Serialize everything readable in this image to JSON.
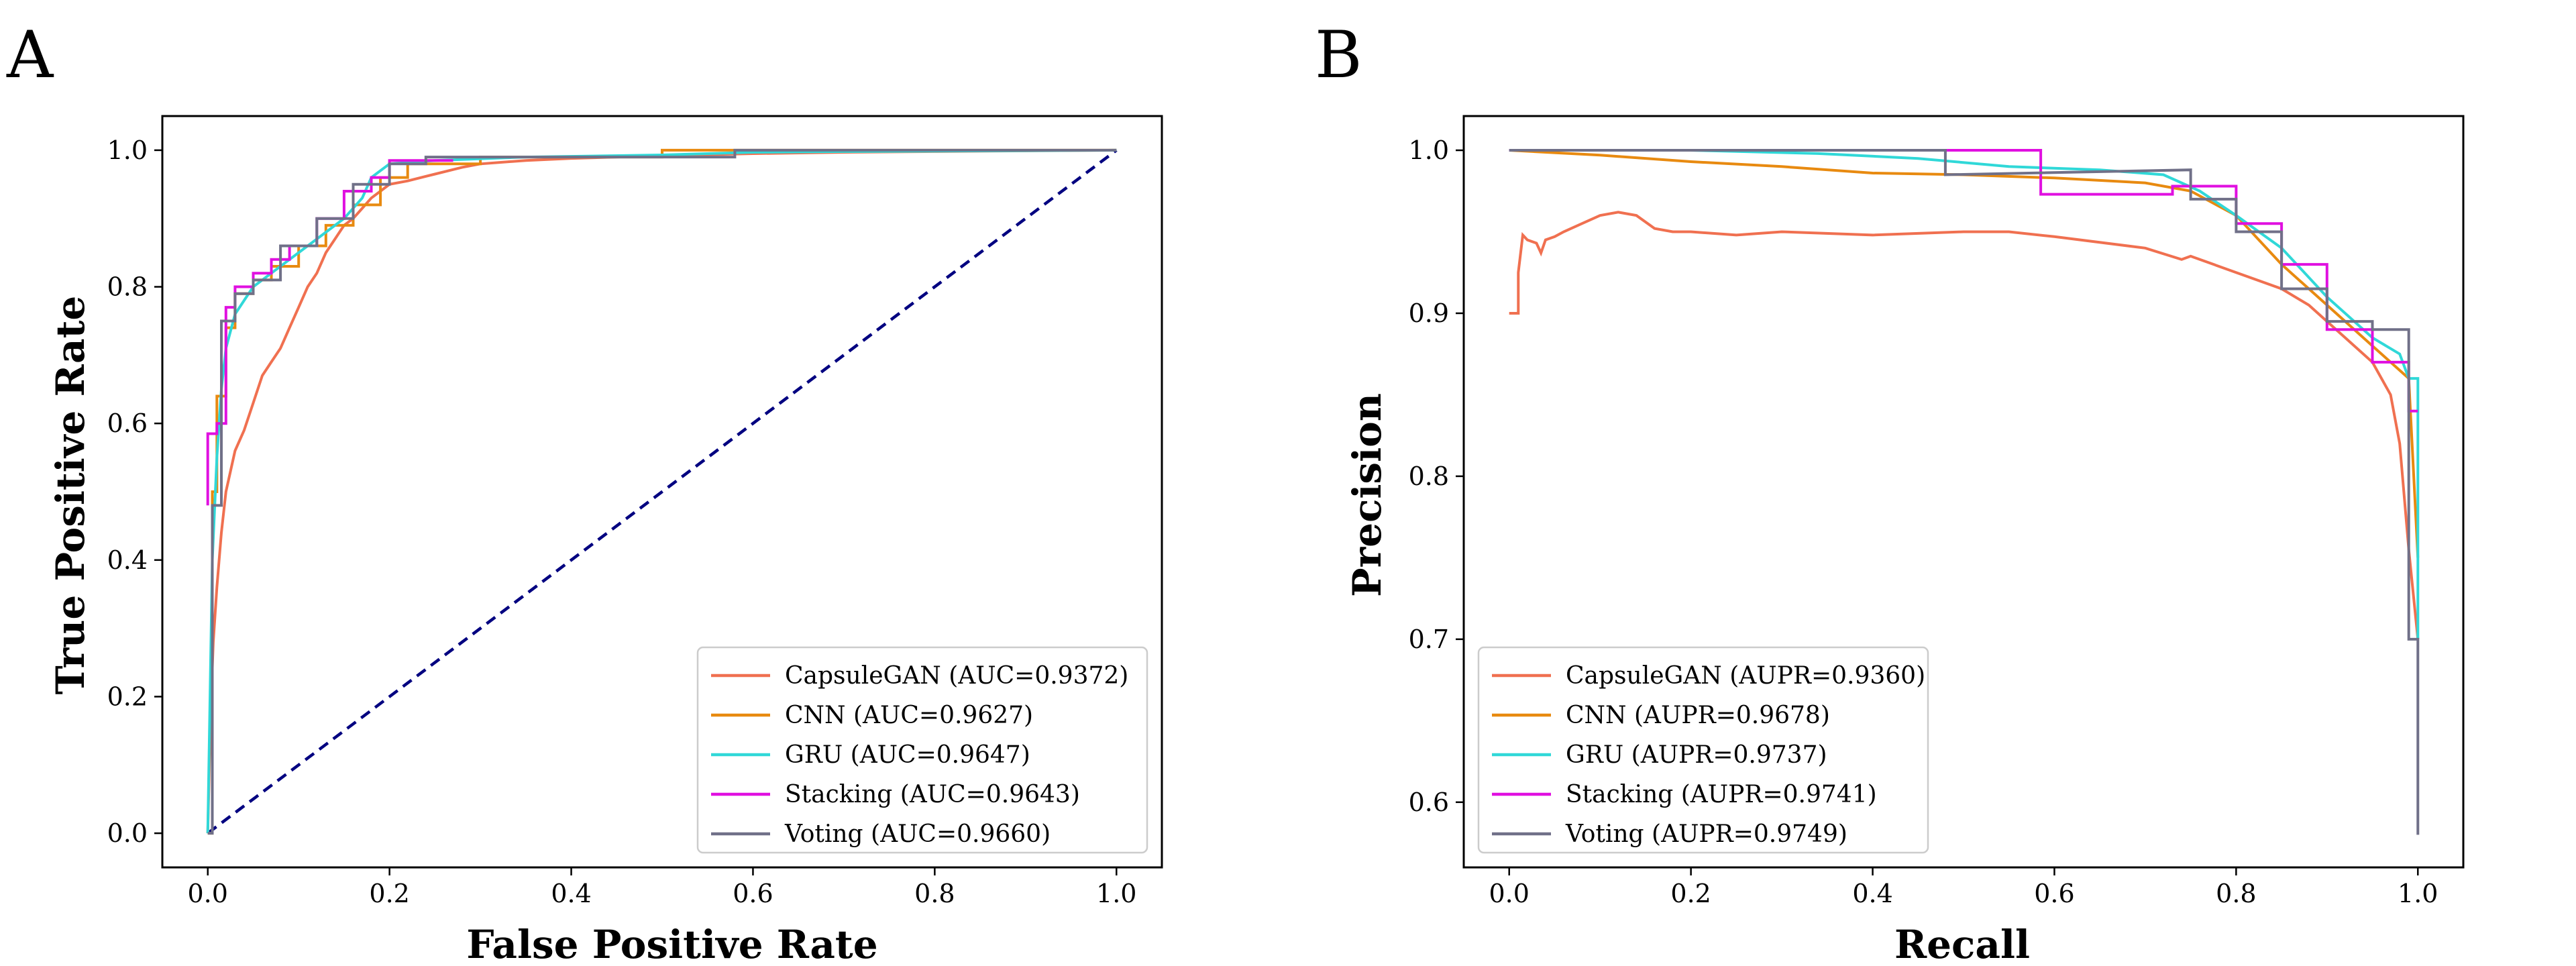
{
  "chart_data": [
    {
      "panel": "A",
      "type": "line",
      "xlabel": "False Positive Rate",
      "ylabel": "True Positive Rate",
      "xlim": [
        -0.05,
        1.05
      ],
      "ylim": [
        -0.05,
        1.05
      ],
      "xticks": [
        "0.0",
        "0.2",
        "0.4",
        "0.6",
        "0.8",
        "1.0"
      ],
      "yticks": [
        "0.0",
        "0.2",
        "0.4",
        "0.6",
        "0.8",
        "1.0"
      ],
      "grid": false,
      "legend_position": "lower-right",
      "reference_line": {
        "x": [
          0,
          1
        ],
        "y": [
          0,
          1
        ],
        "color": "#000080",
        "style": "dashed"
      },
      "series": [
        {
          "name": "CapsuleGAN (AUC=0.9372)",
          "color": "#f07050",
          "step": false,
          "x": [
            0,
            0.003,
            0.006,
            0.01,
            0.015,
            0.02,
            0.03,
            0.04,
            0.05,
            0.06,
            0.07,
            0.08,
            0.09,
            0.1,
            0.11,
            0.12,
            0.13,
            0.14,
            0.15,
            0.16,
            0.17,
            0.18,
            0.19,
            0.2,
            0.22,
            0.25,
            0.28,
            0.3,
            0.35,
            0.4,
            0.45,
            0.5,
            0.6,
            0.7,
            0.8,
            0.9,
            1.0
          ],
          "y": [
            0,
            0.17,
            0.28,
            0.36,
            0.44,
            0.5,
            0.56,
            0.59,
            0.63,
            0.67,
            0.69,
            0.71,
            0.74,
            0.77,
            0.8,
            0.82,
            0.85,
            0.87,
            0.89,
            0.9,
            0.915,
            0.93,
            0.94,
            0.95,
            0.955,
            0.965,
            0.975,
            0.98,
            0.985,
            0.988,
            0.99,
            0.992,
            0.995,
            0.997,
            0.998,
            0.999,
            1.0
          ]
        },
        {
          "name": "CNN (AUC=0.9627)",
          "color": "#e88a10",
          "step": true,
          "x": [
            0,
            0.005,
            0.005,
            0.01,
            0.01,
            0.02,
            0.02,
            0.03,
            0.03,
            0.05,
            0.05,
            0.07,
            0.07,
            0.1,
            0.1,
            0.13,
            0.13,
            0.16,
            0.16,
            0.19,
            0.19,
            0.22,
            0.22,
            0.3,
            0.3,
            0.5,
            0.5,
            1.0
          ],
          "y": [
            0,
            0,
            0.5,
            0.5,
            0.64,
            0.64,
            0.74,
            0.74,
            0.79,
            0.79,
            0.81,
            0.81,
            0.83,
            0.83,
            0.86,
            0.86,
            0.89,
            0.89,
            0.92,
            0.92,
            0.96,
            0.96,
            0.98,
            0.98,
            0.99,
            0.99,
            1.0,
            1.0
          ]
        },
        {
          "name": "GRU (AUC=0.9647)",
          "color": "#30d8d8",
          "step": false,
          "x": [
            0,
            0.005,
            0.01,
            0.015,
            0.02,
            0.03,
            0.04,
            0.05,
            0.07,
            0.09,
            0.11,
            0.13,
            0.15,
            0.17,
            0.18,
            0.2,
            0.25,
            0.35,
            0.5,
            0.6,
            0.7,
            1.0
          ],
          "y": [
            0,
            0.4,
            0.55,
            0.65,
            0.71,
            0.76,
            0.78,
            0.8,
            0.82,
            0.84,
            0.86,
            0.88,
            0.9,
            0.93,
            0.96,
            0.98,
            0.985,
            0.99,
            0.993,
            0.997,
            0.998,
            1.0
          ]
        },
        {
          "name": "Stacking (AUC=0.9643)",
          "color": "#e010e0",
          "step": true,
          "x": [
            0,
            0,
            0.01,
            0.01,
            0.02,
            0.02,
            0.03,
            0.03,
            0.05,
            0.05,
            0.07,
            0.07,
            0.09,
            0.09,
            0.12,
            0.12,
            0.15,
            0.15,
            0.18,
            0.18,
            0.2,
            0.2,
            0.27
          ],
          "y": [
            0.48,
            0.585,
            0.585,
            0.6,
            0.6,
            0.77,
            0.77,
            0.8,
            0.8,
            0.82,
            0.82,
            0.84,
            0.84,
            0.86,
            0.86,
            0.9,
            0.9,
            0.94,
            0.94,
            0.96,
            0.96,
            0.985,
            0.985
          ]
        },
        {
          "name": "Voting (AUC=0.9660)",
          "color": "#707088",
          "step": true,
          "x": [
            0,
            0.005,
            0.005,
            0.015,
            0.015,
            0.03,
            0.03,
            0.05,
            0.05,
            0.08,
            0.08,
            0.12,
            0.12,
            0.16,
            0.16,
            0.2,
            0.2,
            0.24,
            0.24,
            0.58,
            0.58,
            1.0
          ],
          "y": [
            0,
            0,
            0.48,
            0.48,
            0.75,
            0.75,
            0.79,
            0.79,
            0.81,
            0.81,
            0.86,
            0.86,
            0.9,
            0.9,
            0.95,
            0.95,
            0.98,
            0.98,
            0.99,
            0.99,
            1.0,
            1.0
          ]
        }
      ]
    },
    {
      "panel": "B",
      "type": "line",
      "xlabel": "Recall",
      "ylabel": "Precision",
      "xlim": [
        -0.05,
        1.05
      ],
      "ylim": [
        0.56,
        1.021
      ],
      "xticks": [
        "0.0",
        "0.2",
        "0.4",
        "0.6",
        "0.8",
        "1.0"
      ],
      "yticks": [
        "0.6",
        "0.7",
        "0.8",
        "0.9",
        "1.0"
      ],
      "grid": false,
      "legend_position": "lower-left",
      "series": [
        {
          "name": "CapsuleGAN (AUPR=0.9360)",
          "color": "#f07050",
          "step": false,
          "x": [
            0,
            0.01,
            0.01,
            0.015,
            0.02,
            0.03,
            0.035,
            0.04,
            0.05,
            0.06,
            0.08,
            0.1,
            0.12,
            0.14,
            0.16,
            0.18,
            0.2,
            0.25,
            0.3,
            0.4,
            0.5,
            0.55,
            0.6,
            0.7,
            0.74,
            0.75,
            0.8,
            0.85,
            0.88,
            0.9,
            0.92,
            0.95,
            0.97,
            0.98,
            0.99,
            1.0
          ],
          "y": [
            0.9,
            0.9,
            0.925,
            0.948,
            0.945,
            0.943,
            0.937,
            0.945,
            0.947,
            0.95,
            0.955,
            0.96,
            0.962,
            0.96,
            0.952,
            0.95,
            0.95,
            0.948,
            0.95,
            0.948,
            0.95,
            0.95,
            0.947,
            0.94,
            0.933,
            0.935,
            0.925,
            0.915,
            0.905,
            0.895,
            0.885,
            0.87,
            0.85,
            0.82,
            0.755,
            0.7
          ]
        },
        {
          "name": "CNN (AUPR=0.9678)",
          "color": "#e88a10",
          "step": false,
          "x": [
            0,
            0.1,
            0.2,
            0.3,
            0.4,
            0.5,
            0.6,
            0.7,
            0.75,
            0.8,
            0.85,
            0.9,
            0.95,
            0.97,
            0.99,
            1.0
          ],
          "y": [
            1.0,
            0.997,
            0.993,
            0.99,
            0.986,
            0.985,
            0.983,
            0.98,
            0.975,
            0.96,
            0.93,
            0.905,
            0.88,
            0.87,
            0.86,
            0.75
          ]
        },
        {
          "name": "GRU (AUPR=0.9737)",
          "color": "#30d8d8",
          "step": false,
          "x": [
            0,
            0.2,
            0.34,
            0.45,
            0.55,
            0.65,
            0.72,
            0.76,
            0.8,
            0.85,
            0.9,
            0.95,
            0.98,
            0.99,
            1.0,
            1.0
          ],
          "y": [
            1.0,
            1.0,
            0.998,
            0.995,
            0.99,
            0.988,
            0.985,
            0.975,
            0.96,
            0.94,
            0.91,
            0.885,
            0.875,
            0.86,
            0.86,
            0.7
          ]
        },
        {
          "name": "Stacking (AUPR=0.9741)",
          "color": "#e010e0",
          "step": true,
          "x": [
            0,
            0.48,
            0.48,
            0.585,
            0.585,
            0.73,
            0.73,
            0.8,
            0.8,
            0.85,
            0.85,
            0.9,
            0.9,
            0.95,
            0.95,
            0.99,
            0.99,
            1.0
          ],
          "y": [
            1.0,
            1.0,
            1.0,
            1.0,
            0.973,
            0.973,
            0.978,
            0.978,
            0.955,
            0.955,
            0.93,
            0.93,
            0.89,
            0.89,
            0.87,
            0.87,
            0.84,
            0.84
          ]
        },
        {
          "name": "Voting (AUPR=0.9749)",
          "color": "#707088",
          "step": true,
          "x": [
            0,
            0.48,
            0.48,
            0.75,
            0.75,
            0.8,
            0.8,
            0.85,
            0.85,
            0.9,
            0.9,
            0.95,
            0.95,
            0.99,
            0.99,
            1.0,
            1.0
          ],
          "y": [
            1.0,
            1.0,
            0.985,
            0.988,
            0.97,
            0.97,
            0.95,
            0.95,
            0.915,
            0.915,
            0.895,
            0.895,
            0.89,
            0.89,
            0.7,
            0.7,
            0.58
          ]
        }
      ]
    }
  ]
}
